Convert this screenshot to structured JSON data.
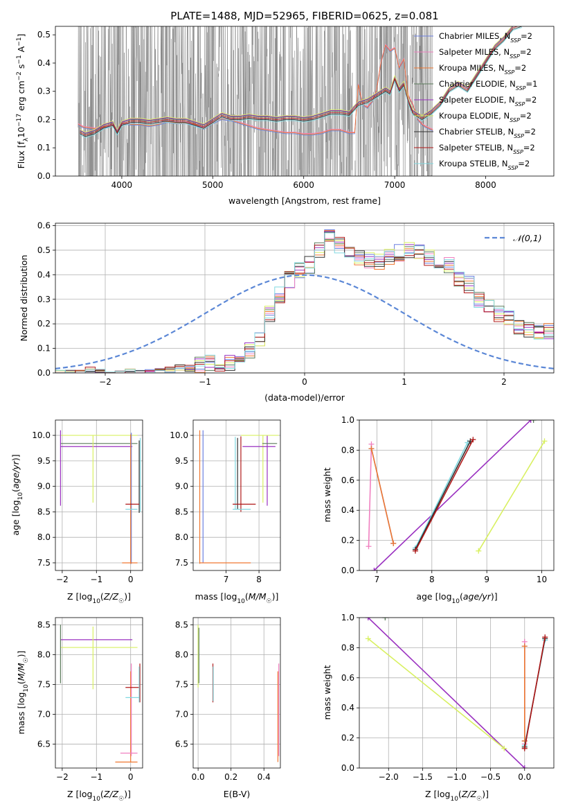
{
  "figure": {
    "title": "PLATE=1488, MJD=52965, FIBERID=0625, z=0.081"
  },
  "colors": {
    "Chabrier_MILES": "#6b7fe0",
    "Salpeter_MILES": "#f080c0",
    "Kroupa_MILES": "#f07830",
    "Chabrier_ELODIE": "#5a7a5a",
    "Salpeter_ELODIE": "#9a30c0",
    "Kroupa_ELODIE": "#d8f060",
    "Chabrier_STELIB": "#303030",
    "Salpeter_STELIB": "#b01818",
    "Kroupa_STELIB": "#80d8e0",
    "data": "#808080",
    "normal": "#5b87d6"
  },
  "chart_data": [
    {
      "id": "spectrum",
      "type": "line",
      "xlabel": "wavelength [Angstrom, rest frame]",
      "ylabel": "Flux [f_λ10^-17 erg cm^-2 s^-1 A^-1]",
      "xlim": [
        3270,
        8750
      ],
      "ylim": [
        0,
        0.53
      ],
      "xticks": [
        4000,
        5000,
        6000,
        7000,
        8000
      ],
      "yticks": [
        0,
        0.1,
        0.2,
        0.3,
        0.4,
        0.5
      ],
      "legend_position": "right",
      "legend": [
        {
          "key": "Chabrier_MILES",
          "label": "Chabrier MILES, N",
          "sub": "SSP",
          "suffix": "=2"
        },
        {
          "key": "Salpeter_MILES",
          "label": "Salpeter MILES, N",
          "sub": "SSP",
          "suffix": "=2"
        },
        {
          "key": "Kroupa_MILES",
          "label": "Kroupa MILES, N",
          "sub": "SSP",
          "suffix": "=2"
        },
        {
          "key": "Chabrier_ELODIE",
          "label": "Chabrier ELODIE, N",
          "sub": "SSP",
          "suffix": "=1"
        },
        {
          "key": "Salpeter_ELODIE",
          "label": "Salpeter ELODIE, N",
          "sub": "SSP",
          "suffix": "=2"
        },
        {
          "key": "Kroupa_ELODIE",
          "label": "Kroupa ELODIE, N",
          "sub": "SSP",
          "suffix": "=2"
        },
        {
          "key": "Chabrier_STELIB",
          "label": "Chabrier STELIB, N",
          "sub": "SSP",
          "suffix": "=2"
        },
        {
          "key": "Salpeter_STELIB",
          "label": "Salpeter STELIB, N",
          "sub": "SSP",
          "suffix": "=2"
        },
        {
          "key": "Kroupa_STELIB",
          "label": "Kroupa STELIB, N",
          "sub": "SSP",
          "suffix": "=2"
        }
      ],
      "data_range": [
        3520,
        7420
      ],
      "model_milesish": [
        [
          3520,
          0.18
        ],
        [
          3580,
          0.17
        ],
        [
          3700,
          0.165
        ],
        [
          3800,
          0.17
        ],
        [
          3900,
          0.175
        ],
        [
          3950,
          0.16
        ],
        [
          4000,
          0.185
        ],
        [
          4100,
          0.18
        ],
        [
          4200,
          0.18
        ],
        [
          4300,
          0.175
        ],
        [
          4400,
          0.18
        ],
        [
          4500,
          0.19
        ],
        [
          4600,
          0.185
        ],
        [
          4700,
          0.185
        ],
        [
          4800,
          0.18
        ],
        [
          4900,
          0.165
        ],
        [
          5000,
          0.185
        ],
        [
          5100,
          0.2
        ],
        [
          5200,
          0.195
        ],
        [
          5300,
          0.185
        ],
        [
          5400,
          0.175
        ],
        [
          5500,
          0.165
        ],
        [
          5600,
          0.16
        ],
        [
          5700,
          0.155
        ],
        [
          5800,
          0.15
        ],
        [
          5900,
          0.15
        ],
        [
          6000,
          0.145
        ],
        [
          6100,
          0.145
        ],
        [
          6200,
          0.15
        ],
        [
          6300,
          0.16
        ],
        [
          6400,
          0.16
        ],
        [
          6500,
          0.15
        ],
        [
          6560,
          0.15
        ],
        [
          6600,
          0.32
        ],
        [
          6650,
          0.25
        ],
        [
          6700,
          0.24
        ],
        [
          6750,
          0.26
        ],
        [
          6800,
          0.3
        ],
        [
          6850,
          0.4
        ],
        [
          6900,
          0.46
        ],
        [
          6950,
          0.44
        ],
        [
          7000,
          0.45
        ],
        [
          7050,
          0.38
        ],
        [
          7100,
          0.41
        ],
        [
          7150,
          0.28
        ],
        [
          7200,
          0.25
        ],
        [
          7250,
          0.2
        ],
        [
          7300,
          0.18
        ],
        [
          7350,
          0.17
        ],
        [
          7420,
          0.16
        ]
      ],
      "model_stelib": [
        [
          3540,
          0.15
        ],
        [
          3600,
          0.14
        ],
        [
          3700,
          0.15
        ],
        [
          3800,
          0.17
        ],
        [
          3900,
          0.18
        ],
        [
          3950,
          0.15
        ],
        [
          4000,
          0.18
        ],
        [
          4100,
          0.19
        ],
        [
          4200,
          0.19
        ],
        [
          4300,
          0.185
        ],
        [
          4400,
          0.19
        ],
        [
          4500,
          0.195
        ],
        [
          4600,
          0.19
        ],
        [
          4700,
          0.19
        ],
        [
          4800,
          0.18
        ],
        [
          4900,
          0.17
        ],
        [
          5000,
          0.19
        ],
        [
          5100,
          0.21
        ],
        [
          5200,
          0.2
        ],
        [
          5300,
          0.2
        ],
        [
          5400,
          0.205
        ],
        [
          5500,
          0.2
        ],
        [
          5600,
          0.2
        ],
        [
          5700,
          0.195
        ],
        [
          5800,
          0.2
        ],
        [
          5900,
          0.2
        ],
        [
          6000,
          0.195
        ],
        [
          6100,
          0.2
        ],
        [
          6200,
          0.21
        ],
        [
          6300,
          0.22
        ],
        [
          6400,
          0.22
        ],
        [
          6500,
          0.215
        ],
        [
          6600,
          0.25
        ],
        [
          6700,
          0.26
        ],
        [
          6800,
          0.28
        ],
        [
          6900,
          0.3
        ],
        [
          6950,
          0.29
        ],
        [
          7000,
          0.34
        ],
        [
          7050,
          0.3
        ],
        [
          7100,
          0.32
        ],
        [
          7150,
          0.26
        ],
        [
          7200,
          0.22
        ],
        [
          7300,
          0.2
        ],
        [
          7400,
          0.22
        ],
        [
          7500,
          0.25
        ],
        [
          7600,
          0.3
        ],
        [
          7700,
          0.32
        ],
        [
          7800,
          0.3
        ],
        [
          7900,
          0.35
        ],
        [
          8000,
          0.4
        ],
        [
          8100,
          0.45
        ],
        [
          8200,
          0.48
        ],
        [
          8300,
          0.52
        ],
        [
          8400,
          0.53
        ]
      ]
    },
    {
      "id": "residuals",
      "type": "line",
      "xlabel": "(data-model)/error",
      "ylabel": "Normed distribution",
      "xlim": [
        -2.5,
        2.5
      ],
      "ylim": [
        0,
        0.61
      ],
      "xticks": [
        -2,
        -1,
        0,
        1,
        2
      ],
      "yticks": [
        0,
        0.1,
        0.2,
        0.3,
        0.4,
        0.5,
        0.6
      ],
      "bin_width": 0.1,
      "bin_start": -2.5,
      "hist_base": [
        0.0,
        0.0,
        0.0,
        0.01,
        0.005,
        0.0,
        0.0,
        0.005,
        0.0,
        0.0,
        0.005,
        0.01,
        0.02,
        0.02,
        0.03,
        0.04,
        0.02,
        0.04,
        0.05,
        0.09,
        0.14,
        0.24,
        0.32,
        0.38,
        0.42,
        0.44,
        0.5,
        0.55,
        0.52,
        0.48,
        0.47,
        0.46,
        0.45,
        0.47,
        0.49,
        0.5,
        0.49,
        0.47,
        0.45,
        0.44,
        0.38,
        0.36,
        0.3,
        0.28,
        0.24,
        0.22,
        0.19,
        0.18,
        0.17,
        0.17,
        0.15,
        0.13,
        0.12,
        0.1,
        0.09,
        0.08,
        0.06,
        0.06,
        0.05,
        0.05
      ],
      "curve_legend": "𝒩(0,1)",
      "curve_legend_position": "top-right"
    },
    {
      "id": "Z_vs_age",
      "type": "scatter",
      "xlabel": "Z [log10(Z/Z☉)]",
      "ylabel": "age [log10(age/yr)]",
      "xlim": [
        -2.2,
        0.35
      ],
      "ylim": [
        7.35,
        10.3
      ],
      "xticks": [
        -2,
        -1,
        0
      ],
      "yticks": [
        7.5,
        8.0,
        8.5,
        9.0,
        9.5,
        10.0
      ]
    },
    {
      "id": "mass_vs_age",
      "type": "scatter",
      "xlabel": "mass [log10(M/M☉)]",
      "ylabel": "",
      "xlim": [
        6.0,
        8.65
      ],
      "ylim": [
        7.35,
        10.3
      ],
      "xticks": [
        7,
        8
      ],
      "yticks": [
        7.5,
        8.0,
        8.5,
        9.0,
        9.5,
        10.0
      ]
    },
    {
      "id": "age_vs_weight",
      "type": "line",
      "xlabel": "age [log10(age/yr)]",
      "ylabel": "mass weight",
      "xlim": [
        6.68,
        10.22
      ],
      "ylim": [
        0,
        1
      ],
      "xticks": [
        7,
        8,
        9,
        10
      ],
      "yticks": [
        0,
        0.2,
        0.4,
        0.6,
        0.8,
        1.0
      ]
    },
    {
      "id": "Z_vs_mass",
      "type": "scatter",
      "xlabel": "Z [log10(Z/Z☉)]",
      "ylabel": "mass [log10(M/M☉)]",
      "xlim": [
        -2.2,
        0.35
      ],
      "ylim": [
        6.1,
        8.62
      ],
      "xticks": [
        -2,
        -1,
        0
      ],
      "yticks": [
        6.5,
        7.0,
        7.5,
        8.0,
        8.5
      ]
    },
    {
      "id": "ebv_vs_mass",
      "type": "scatter",
      "xlabel": "E(B-V)",
      "ylabel": "",
      "xlim": [
        -0.03,
        0.5
      ],
      "ylim": [
        6.1,
        8.62
      ],
      "xticks": [
        0.0,
        0.2,
        0.4
      ],
      "yticks": [
        6.5,
        7.0,
        7.5,
        8.0,
        8.5
      ]
    },
    {
      "id": "Z_vs_weight",
      "type": "line",
      "xlabel": "Z [log10(Z/Z☉)]",
      "ylabel": "mass weight",
      "xlim": [
        -2.43,
        0.43
      ],
      "ylim": [
        0,
        1
      ],
      "xticks": [
        -2.0,
        -1.5,
        -1.0,
        -0.5,
        0.0
      ],
      "yticks": [
        0,
        0.2,
        0.4,
        0.6,
        0.8,
        1.0
      ]
    }
  ],
  "solutions": {
    "Chabrier_MILES": {
      "ages": [
        6.9,
        7.3
      ],
      "Z": [
        0.0,
        0.0
      ],
      "masses": [
        7.45,
        6.2
      ],
      "weights": [
        0.81,
        0.18
      ],
      "ebv": 0.49
    },
    "Salpeter_MILES": {
      "ages": [
        6.85,
        6.9
      ],
      "Z": [
        0.0,
        0.0
      ],
      "masses": [
        7.7,
        6.35
      ],
      "weights": [
        0.16,
        0.84
      ],
      "ebv": 0.49
    },
    "Kroupa_MILES": {
      "ages": [
        6.9,
        7.3
      ],
      "Z": [
        0.0,
        0.0
      ],
      "masses": [
        7.45,
        6.2
      ],
      "weights": [
        0.81,
        0.18
      ],
      "ebv": 0.49
    },
    "Chabrier_ELODIE": {
      "ages": [
        9.85
      ],
      "Z": [
        -2.05
      ],
      "masses": [
        8.2
      ],
      "weights": [
        1.0
      ],
      "ebv": 0.0
    },
    "Salpeter_ELODIE": {
      "ages": [
        6.95,
        9.8
      ],
      "Z": [
        0.0,
        -2.3
      ],
      "masses": [
        6.3,
        8.25
      ],
      "weights": [
        0.0,
        1.0
      ],
      "ebv": 0.0
    },
    "Kroupa_ELODIE": {
      "ages": [
        8.85,
        10.05
      ],
      "Z": [
        -0.3,
        -2.3
      ],
      "masses": [
        7.4,
        8.12
      ],
      "weights": [
        0.13,
        0.86
      ],
      "ebv": 0.0
    },
    "Chabrier_STELIB": {
      "ages": [
        7.7,
        8.7
      ],
      "Z": [
        0.0,
        0.3
      ],
      "masses": [
        7.35,
        7.8
      ],
      "weights": [
        0.14,
        0.86
      ],
      "ebv": 0.09
    },
    "Salpeter_STELIB": {
      "ages": [
        7.7,
        8.75
      ],
      "Z": [
        0.0,
        0.3
      ],
      "masses": [
        7.45,
        7.85
      ],
      "weights": [
        0.13,
        0.87
      ],
      "ebv": 0.09
    },
    "Kroupa_STELIB": {
      "ages": [
        7.7,
        8.65
      ],
      "Z": [
        0.0,
        0.3
      ],
      "masses": [
        7.25,
        7.65
      ],
      "weights": [
        0.15,
        0.85
      ],
      "ebv": 0.09
    }
  }
}
